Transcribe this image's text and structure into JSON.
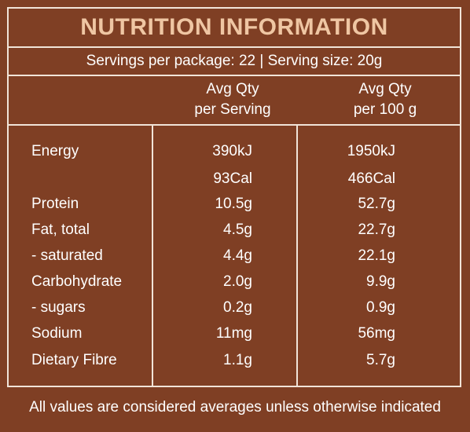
{
  "title": "NUTRITION INFORMATION",
  "servings_line": "Servings per package: 22 | Serving size: 20g",
  "columns": {
    "per_serving_line1": "Avg Qty",
    "per_serving_line2": "per Serving",
    "per_100_line1": "Avg Qty",
    "per_100_line2": "per 100 g"
  },
  "rows": [
    {
      "name": "Energy",
      "per_serving": "390kJ",
      "per_100": "1950kJ"
    },
    {
      "name": "",
      "per_serving": "93Cal",
      "per_100": "466Cal"
    },
    {
      "name": "Protein",
      "per_serving": "10.5g",
      "per_100": "52.7g"
    },
    {
      "name": "Fat, total",
      "per_serving": "4.5g",
      "per_100": "22.7g"
    },
    {
      "name": "- saturated",
      "per_serving": "4.4g",
      "per_100": "22.1g"
    },
    {
      "name": "Carbohydrate",
      "per_serving": "2.0g",
      "per_100": "9.9g"
    },
    {
      "name": "- sugars",
      "per_serving": "0.2g",
      "per_100": "0.9g"
    },
    {
      "name": "Sodium",
      "per_serving": "11mg",
      "per_100": "56mg"
    },
    {
      "name": "Dietary Fibre",
      "per_serving": "1.1g",
      "per_100": "5.7g"
    }
  ],
  "footnote": "All values are considered averages unless otherwise indicated",
  "colors": {
    "background": "#7f3f24",
    "title": "#efc6a3",
    "border": "#f1e4d8",
    "text": "#ffffff"
  }
}
